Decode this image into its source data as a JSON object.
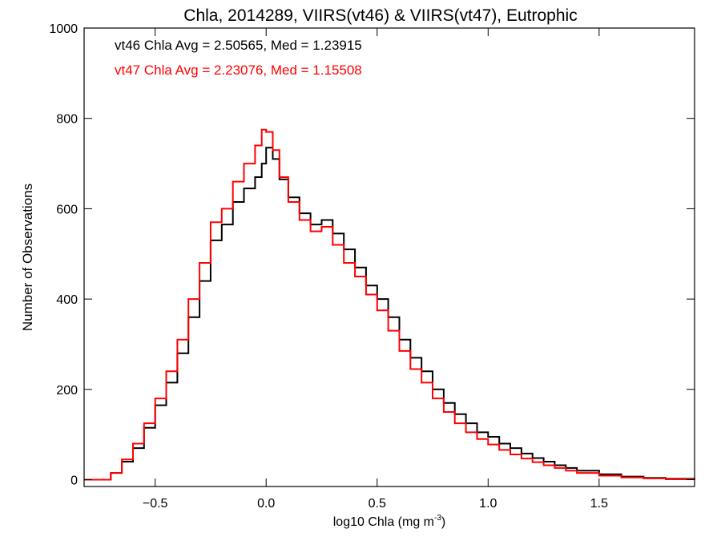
{
  "chart_data": {
    "type": "line",
    "title": "Chla, 2014289, VIIRS(vt46) & VIIRS(vt47), Eutrophic",
    "xlabel": "log10 Chla (mg m",
    "xlabel_sup": "-3",
    "xlabel_end": ")",
    "ylabel": "Number of Observations",
    "xlim": [
      -0.82,
      1.93
    ],
    "ylim": [
      -15,
      1000
    ],
    "x_ticks": [
      -0.5,
      0.0,
      0.5,
      1.0,
      1.5
    ],
    "x_tick_labels": [
      "−0.5",
      "0.0",
      "0.5",
      "1.0",
      "1.5"
    ],
    "y_ticks": [
      0,
      200,
      400,
      600,
      800,
      1000
    ],
    "y_tick_labels": [
      "0",
      "200",
      "400",
      "600",
      "800",
      "1000"
    ],
    "annotations": [
      {
        "text": "vt46 Chla Avg = 2.50565, Med = 1.23915",
        "color": "#000000"
      },
      {
        "text": "vt47 Chla Avg = 2.23076, Med = 1.15508",
        "color": "#ff0000"
      }
    ],
    "series": [
      {
        "color": "#000000",
        "x": [
          -0.82,
          -0.7,
          -0.65,
          -0.6,
          -0.55,
          -0.5,
          -0.45,
          -0.4,
          -0.35,
          -0.3,
          -0.25,
          -0.2,
          -0.15,
          -0.1,
          -0.05,
          -0.02,
          0.0,
          0.03,
          0.06,
          0.1,
          0.15,
          0.2,
          0.25,
          0.3,
          0.35,
          0.4,
          0.45,
          0.5,
          0.55,
          0.6,
          0.65,
          0.7,
          0.75,
          0.8,
          0.85,
          0.9,
          0.95,
          1.0,
          1.05,
          1.1,
          1.15,
          1.2,
          1.25,
          1.3,
          1.35,
          1.4,
          1.5,
          1.6,
          1.7,
          1.8,
          1.93
        ],
        "values": [
          0,
          15,
          40,
          70,
          115,
          165,
          215,
          280,
          360,
          440,
          530,
          565,
          615,
          645,
          670,
          700,
          735,
          710,
          665,
          625,
          590,
          565,
          575,
          545,
          510,
          470,
          430,
          400,
          360,
          310,
          270,
          240,
          200,
          170,
          145,
          125,
          105,
          95,
          80,
          70,
          58,
          48,
          40,
          32,
          26,
          20,
          12,
          7,
          4,
          2,
          0
        ]
      },
      {
        "color": "#ff0000",
        "x": [
          -0.82,
          -0.7,
          -0.65,
          -0.6,
          -0.55,
          -0.5,
          -0.45,
          -0.4,
          -0.35,
          -0.3,
          -0.25,
          -0.2,
          -0.15,
          -0.1,
          -0.05,
          -0.02,
          0.0,
          0.03,
          0.06,
          0.1,
          0.15,
          0.2,
          0.25,
          0.3,
          0.35,
          0.4,
          0.45,
          0.5,
          0.55,
          0.6,
          0.65,
          0.7,
          0.75,
          0.8,
          0.85,
          0.9,
          0.95,
          1.0,
          1.05,
          1.1,
          1.15,
          1.2,
          1.25,
          1.3,
          1.35,
          1.4,
          1.5,
          1.6,
          1.7,
          1.8,
          1.93
        ],
        "values": [
          0,
          15,
          45,
          80,
          125,
          180,
          240,
          310,
          400,
          480,
          570,
          600,
          660,
          700,
          740,
          775,
          770,
          730,
          670,
          615,
          575,
          550,
          560,
          520,
          480,
          450,
          410,
          375,
          330,
          285,
          245,
          215,
          180,
          150,
          125,
          105,
          90,
          78,
          66,
          56,
          47,
          39,
          32,
          26,
          20,
          15,
          9,
          5,
          3,
          1,
          0
        ]
      }
    ]
  }
}
